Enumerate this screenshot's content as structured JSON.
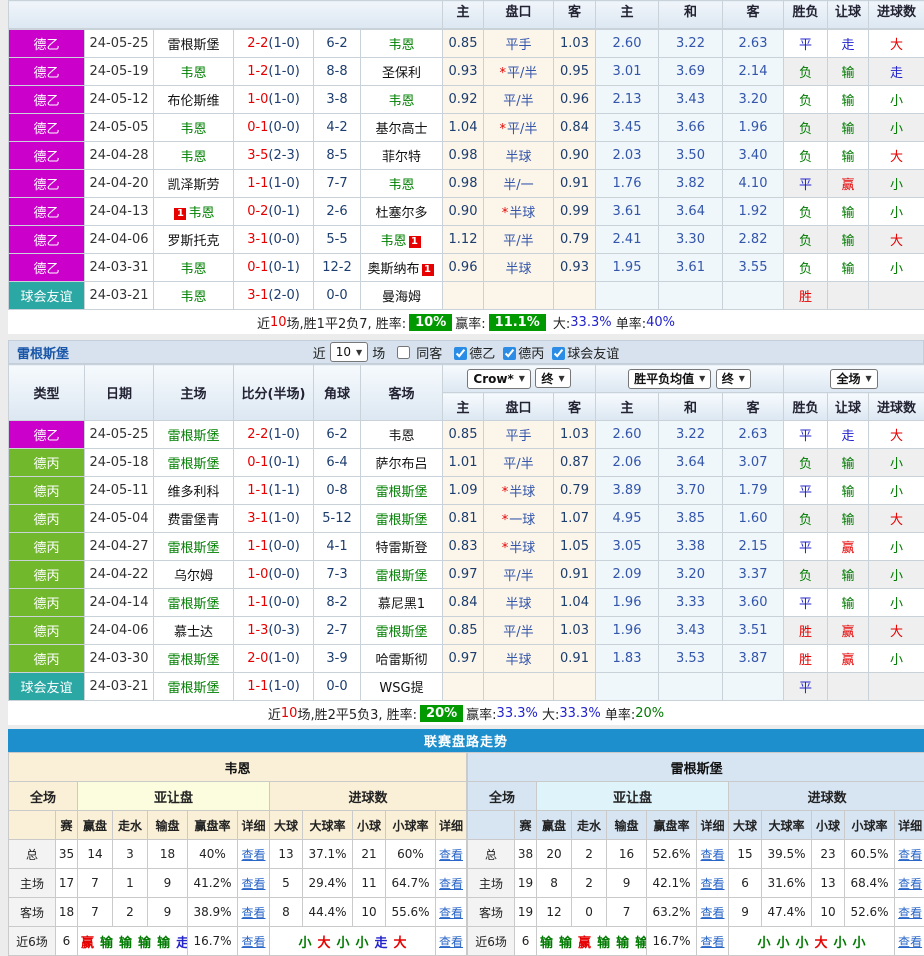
{
  "colors": {
    "league_de2": "#CB00CB",
    "league_de3": "#72B82C",
    "league_friendly": "#2BA8A4",
    "win_red": "#E60000",
    "lose_green": "#007A00",
    "draw_blue": "#2323CC",
    "title_bar_blue": "#1D8FCC",
    "badge_green": "#009900"
  },
  "match_cols": [
    "主",
    "盘口",
    "客",
    "主",
    "和",
    "客",
    "胜负",
    "让球",
    "进球数"
  ],
  "left_cols": [
    "类型",
    "日期",
    "主场",
    "比分(半场)",
    "角球",
    "客场"
  ],
  "table1": {
    "rows": [
      {
        "l": "德乙",
        "lc": "de2",
        "d": "24-05-25",
        "h": "雷根斯堡",
        "hf": false,
        "a": "韦恩",
        "af": true,
        "s": "2-2",
        "sh": "(1-0)",
        "c": "6-2",
        "ah": [
          "0.85",
          "平手",
          "1.03"
        ],
        "eu": [
          "2.60",
          "3.22",
          "2.63"
        ],
        "r": [
          "平",
          "走",
          "大"
        ]
      },
      {
        "l": "德乙",
        "lc": "de2",
        "d": "24-05-19",
        "h": "韦恩",
        "hf": true,
        "a": "圣保利",
        "af": false,
        "s": "1-2",
        "sh": "(1-0)",
        "c": "8-8",
        "ah": [
          "0.93",
          "*平/半",
          "0.95"
        ],
        "eu": [
          "3.01",
          "3.69",
          "2.14"
        ],
        "r": [
          "负",
          "输",
          "走"
        ]
      },
      {
        "l": "德乙",
        "lc": "de2",
        "d": "24-05-12",
        "h": "布伦斯维",
        "hf": false,
        "a": "韦恩",
        "af": true,
        "s": "1-0",
        "sh": "(1-0)",
        "c": "3-8",
        "ah": [
          "0.92",
          "平/半",
          "0.96"
        ],
        "eu": [
          "2.13",
          "3.43",
          "3.20"
        ],
        "r": [
          "负",
          "输",
          "小"
        ]
      },
      {
        "l": "德乙",
        "lc": "de2",
        "d": "24-05-05",
        "h": "韦恩",
        "hf": true,
        "a": "基尔高士",
        "af": false,
        "s": "0-1",
        "sh": "(0-0)",
        "c": "4-2",
        "ah": [
          "1.04",
          "*平/半",
          "0.84"
        ],
        "eu": [
          "3.45",
          "3.66",
          "1.96"
        ],
        "r": [
          "负",
          "输",
          "小"
        ]
      },
      {
        "l": "德乙",
        "lc": "de2",
        "d": "24-04-28",
        "h": "韦恩",
        "hf": true,
        "a": "菲尔特",
        "af": false,
        "s": "3-5",
        "sh": "(2-3)",
        "c": "8-5",
        "ah": [
          "0.98",
          "半球",
          "0.90"
        ],
        "eu": [
          "2.03",
          "3.50",
          "3.40"
        ],
        "r": [
          "负",
          "输",
          "大"
        ]
      },
      {
        "l": "德乙",
        "lc": "de2",
        "d": "24-04-20",
        "h": "凯泽斯劳",
        "hf": false,
        "a": "韦恩",
        "af": true,
        "s": "1-1",
        "sh": "(1-0)",
        "c": "7-7",
        "ah": [
          "0.98",
          "半/一",
          "0.91"
        ],
        "eu": [
          "1.76",
          "3.82",
          "4.10"
        ],
        "r": [
          "平",
          "赢",
          "小"
        ]
      },
      {
        "l": "德乙",
        "lc": "de2",
        "d": "24-04-13",
        "h": "韦恩",
        "hf": true,
        "hcard": "before",
        "a": "杜塞尔多",
        "af": false,
        "s": "0-2",
        "sh": "(0-1)",
        "c": "2-6",
        "ah": [
          "0.90",
          "*半球",
          "0.99"
        ],
        "eu": [
          "3.61",
          "3.64",
          "1.92"
        ],
        "r": [
          "负",
          "输",
          "小"
        ]
      },
      {
        "l": "德乙",
        "lc": "de2",
        "d": "24-04-06",
        "h": "罗斯托克",
        "hf": false,
        "a": "韦恩",
        "af": true,
        "acard": "after",
        "s": "3-1",
        "sh": "(0-0)",
        "c": "5-5",
        "ah": [
          "1.12",
          "平/半",
          "0.79"
        ],
        "eu": [
          "2.41",
          "3.30",
          "2.82"
        ],
        "r": [
          "负",
          "输",
          "大"
        ]
      },
      {
        "l": "德乙",
        "lc": "de2",
        "d": "24-03-31",
        "h": "韦恩",
        "hf": true,
        "a": "奥斯纳布",
        "af": false,
        "acard": "after",
        "s": "0-1",
        "sh": "(0-1)",
        "c": "12-2",
        "ah": [
          "0.96",
          "半球",
          "0.93"
        ],
        "eu": [
          "1.95",
          "3.61",
          "3.55"
        ],
        "r": [
          "负",
          "输",
          "小"
        ]
      },
      {
        "l": "球会友谊",
        "lc": "fr",
        "d": "24-03-21",
        "h": "韦恩",
        "hf": true,
        "a": "曼海姆",
        "af": false,
        "s": "3-1",
        "sh": "(2-0)",
        "c": "0-0",
        "ah": [
          "",
          "",
          ""
        ],
        "eu": [
          "",
          "",
          ""
        ],
        "r": [
          "胜",
          "",
          ""
        ]
      }
    ],
    "summary": [
      {
        "t": "近"
      },
      {
        "t": "10",
        "c": "red"
      },
      {
        "t": "场,胜1平2负7, 胜率:"
      },
      {
        "t": "10%",
        "badge": true
      },
      {
        "t": "赢率:"
      },
      {
        "t": "11.1%",
        "badge": true
      },
      {
        "t": " 大:"
      },
      {
        "t": "33.3%",
        "c": "blue"
      },
      {
        "t": " 单率:"
      },
      {
        "t": "40%",
        "c": "blue"
      }
    ]
  },
  "section2": {
    "title": "雷根斯堡",
    "near_label": "近",
    "count_value": "10",
    "games_label": "场",
    "same_away": {
      "label": "同客",
      "checked": false
    },
    "league_filters": [
      {
        "label": "德乙",
        "checked": true
      },
      {
        "label": "德丙",
        "checked": true
      },
      {
        "label": "球会友谊",
        "checked": true
      }
    ],
    "selects": {
      "provider": "Crow*",
      "provider_time": "终",
      "europe": "胜平负均值",
      "europe_time": "终",
      "scope": "全场"
    },
    "rows": [
      {
        "l": "德乙",
        "lc": "de2",
        "d": "24-05-25",
        "h": "雷根斯堡",
        "hf": true,
        "a": "韦恩",
        "af": false,
        "s": "2-2",
        "sh": "(1-0)",
        "c": "6-2",
        "ah": [
          "0.85",
          "平手",
          "1.03"
        ],
        "eu": [
          "2.60",
          "3.22",
          "2.63"
        ],
        "r": [
          "平",
          "走",
          "大"
        ]
      },
      {
        "l": "德丙",
        "lc": "de3",
        "d": "24-05-18",
        "h": "雷根斯堡",
        "hf": true,
        "a": "萨尔布吕",
        "af": false,
        "s": "0-1",
        "sh": "(0-1)",
        "c": "6-4",
        "ah": [
          "1.01",
          "平/半",
          "0.87"
        ],
        "eu": [
          "2.06",
          "3.64",
          "3.07"
        ],
        "r": [
          "负",
          "输",
          "小"
        ]
      },
      {
        "l": "德丙",
        "lc": "de3",
        "d": "24-05-11",
        "h": "维多利科",
        "hf": false,
        "a": "雷根斯堡",
        "af": true,
        "s": "1-1",
        "sh": "(1-1)",
        "c": "0-8",
        "ah": [
          "1.09",
          "*半球",
          "0.79"
        ],
        "eu": [
          "3.89",
          "3.70",
          "1.79"
        ],
        "r": [
          "平",
          "输",
          "小"
        ]
      },
      {
        "l": "德丙",
        "lc": "de3",
        "d": "24-05-04",
        "h": "费雷堡青",
        "hf": false,
        "a": "雷根斯堡",
        "af": true,
        "s": "3-1",
        "sh": "(1-0)",
        "c": "5-12",
        "ah": [
          "0.81",
          "*一球",
          "1.07"
        ],
        "eu": [
          "4.95",
          "3.85",
          "1.60"
        ],
        "r": [
          "负",
          "输",
          "大"
        ]
      },
      {
        "l": "德丙",
        "lc": "de3",
        "d": "24-04-27",
        "h": "雷根斯堡",
        "hf": true,
        "a": "特雷斯登",
        "af": false,
        "s": "1-1",
        "sh": "(0-0)",
        "c": "4-1",
        "ah": [
          "0.83",
          "*半球",
          "1.05"
        ],
        "eu": [
          "3.05",
          "3.38",
          "2.15"
        ],
        "r": [
          "平",
          "赢",
          "小"
        ]
      },
      {
        "l": "德丙",
        "lc": "de3",
        "d": "24-04-22",
        "h": "乌尔姆",
        "hf": false,
        "a": "雷根斯堡",
        "af": true,
        "s": "1-0",
        "sh": "(0-0)",
        "c": "7-3",
        "ah": [
          "0.97",
          "平/半",
          "0.91"
        ],
        "eu": [
          "2.09",
          "3.20",
          "3.37"
        ],
        "r": [
          "负",
          "输",
          "小"
        ]
      },
      {
        "l": "德丙",
        "lc": "de3",
        "d": "24-04-14",
        "h": "雷根斯堡",
        "hf": true,
        "a": "慕尼黑1",
        "af": false,
        "s": "1-1",
        "sh": "(0-0)",
        "c": "8-2",
        "ah": [
          "0.84",
          "半球",
          "1.04"
        ],
        "eu": [
          "1.96",
          "3.33",
          "3.60"
        ],
        "r": [
          "平",
          "输",
          "小"
        ]
      },
      {
        "l": "德丙",
        "lc": "de3",
        "d": "24-04-06",
        "h": "慕士达",
        "hf": false,
        "a": "雷根斯堡",
        "af": true,
        "s": "1-3",
        "sh": "(0-3)",
        "c": "2-7",
        "ah": [
          "0.85",
          "平/半",
          "1.03"
        ],
        "eu": [
          "1.96",
          "3.43",
          "3.51"
        ],
        "r": [
          "胜",
          "赢",
          "大"
        ]
      },
      {
        "l": "德丙",
        "lc": "de3",
        "d": "24-03-30",
        "h": "雷根斯堡",
        "hf": true,
        "a": "哈雷斯彻",
        "af": false,
        "s": "2-0",
        "sh": "(1-0)",
        "c": "3-9",
        "ah": [
          "0.97",
          "半球",
          "0.91"
        ],
        "eu": [
          "1.83",
          "3.53",
          "3.87"
        ],
        "r": [
          "胜",
          "赢",
          "小"
        ]
      },
      {
        "l": "球会友谊",
        "lc": "fr",
        "d": "24-03-21",
        "h": "雷根斯堡",
        "hf": true,
        "a": "WSG提",
        "af": false,
        "s": "1-1",
        "sh": "(1-0)",
        "c": "0-0",
        "ah": [
          "",
          "",
          ""
        ],
        "eu": [
          "",
          "",
          ""
        ],
        "r": [
          "平",
          "",
          ""
        ]
      }
    ],
    "summary": [
      {
        "t": "近"
      },
      {
        "t": "10",
        "c": "red"
      },
      {
        "t": "场,胜2平5负3, 胜率:"
      },
      {
        "t": "20%",
        "badge": true
      },
      {
        "t": "赢率:"
      },
      {
        "t": "33.3%",
        "c": "blue"
      },
      {
        "t": " 大:"
      },
      {
        "t": "33.3%",
        "c": "blue"
      },
      {
        "t": " 单率:"
      },
      {
        "t": "20%",
        "c": "green"
      }
    ]
  },
  "trend": {
    "title": "联赛盘路走势",
    "group_labels": [
      "全场",
      "亚让盘",
      "进球数"
    ],
    "col_labels": [
      "赛",
      "赢盘",
      "走水",
      "输盘",
      "赢盘率",
      "详细",
      "大球",
      "大球率",
      "小球",
      "小球率",
      "详细"
    ],
    "view_label": "查看",
    "teams": [
      {
        "name": "韦恩",
        "theme": "trL",
        "rows": [
          {
            "label": "总",
            "cells": [
              "35",
              "14",
              "3",
              "18",
              "40%",
              "13",
              "37.1%",
              "21",
              "60%"
            ]
          },
          {
            "label": "主场",
            "cells": [
              "17",
              "7",
              "1",
              "9",
              "41.2%",
              "5",
              "29.4%",
              "11",
              "64.7%"
            ]
          },
          {
            "label": "客场",
            "cells": [
              "18",
              "7",
              "2",
              "9",
              "38.9%",
              "8",
              "44.4%",
              "10",
              "55.6%"
            ]
          }
        ],
        "recent": {
          "label": "近6场",
          "count": "6",
          "ah_seq": [
            "赢",
            "输",
            "输",
            "输",
            "输",
            "走"
          ],
          "ah_rate": "16.7%",
          "goal_seq": [
            "小",
            "大",
            "小",
            "小",
            "走",
            "大"
          ]
        }
      },
      {
        "name": "雷根斯堡",
        "theme": "trR",
        "rows": [
          {
            "label": "总",
            "cells": [
              "38",
              "20",
              "2",
              "16",
              "52.6%",
              "15",
              "39.5%",
              "23",
              "60.5%"
            ]
          },
          {
            "label": "主场",
            "cells": [
              "19",
              "8",
              "2",
              "9",
              "42.1%",
              "6",
              "31.6%",
              "13",
              "68.4%"
            ]
          },
          {
            "label": "客场",
            "cells": [
              "19",
              "12",
              "0",
              "7",
              "63.2%",
              "9",
              "47.4%",
              "10",
              "52.6%"
            ]
          }
        ],
        "recent": {
          "label": "近6场",
          "count": "6",
          "ah_seq": [
            "输",
            "输",
            "赢",
            "输",
            "输",
            "输"
          ],
          "ah_rate": "16.7%",
          "goal_seq": [
            "小",
            "小",
            "小",
            "大",
            "小",
            "小"
          ]
        }
      }
    ]
  }
}
